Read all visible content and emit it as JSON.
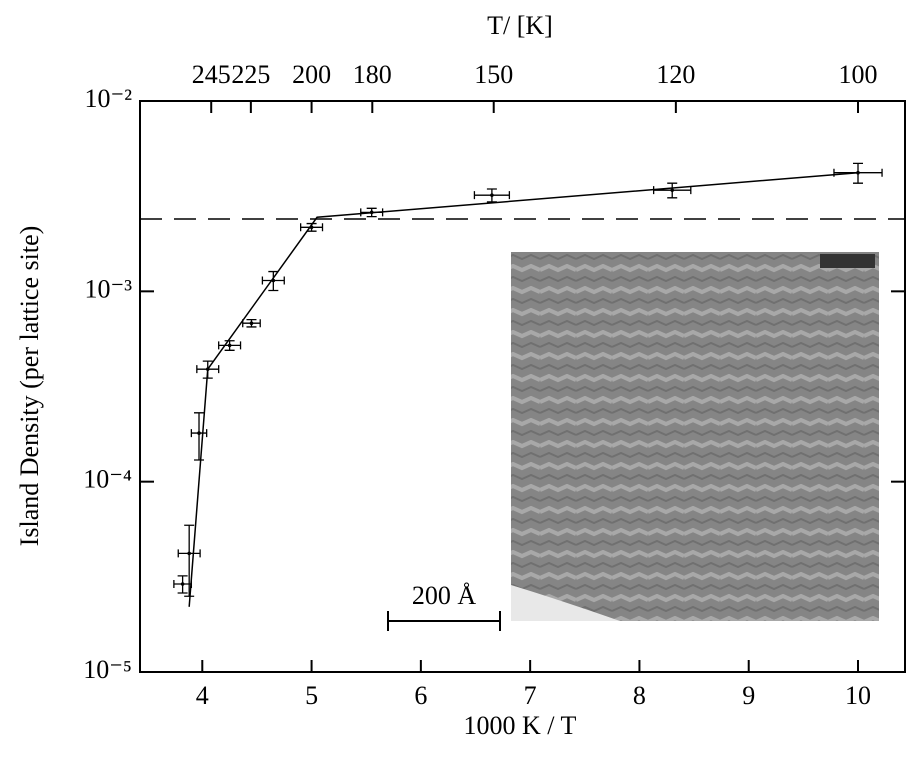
{
  "chart_data": {
    "type": "scatter",
    "x_label": "1000 K / T",
    "y_label": "Island Density  (per lattice site)",
    "top_label": "T/ [K]",
    "x": [
      3.82,
      3.88,
      3.97,
      4.05,
      4.25,
      4.45,
      4.65,
      5.0,
      5.55,
      6.65,
      8.3,
      10.0
    ],
    "values": [
      2.9e-05,
      4.2e-05,
      0.00018,
      0.00039,
      0.00052,
      0.00068,
      0.00114,
      0.00217,
      0.0026,
      0.0032,
      0.0034,
      0.0042
    ],
    "xerr": [
      0.08,
      0.1,
      0.07,
      0.1,
      0.1,
      0.08,
      0.1,
      0.1,
      0.1,
      0.16,
      0.17,
      0.22
    ],
    "yerr": [
      3e-06,
      1.7e-05,
      5e-05,
      4e-05,
      3e-05,
      3e-05,
      0.00013,
      0.0001,
      0.00013,
      0.00025,
      0.0003,
      0.0005
    ],
    "color": "#000000",
    "fit": {
      "x": [
        3.88,
        4.05,
        5.05,
        10.0
      ],
      "y": [
        2.2e-05,
        0.00039,
        0.00245,
        0.0042
      ]
    },
    "reference_line": 0.0024,
    "xlim": [
      3.43,
      10.43
    ],
    "ylim": [
      1e-05,
      0.01
    ],
    "log_y": true,
    "xticks": [
      4,
      5,
      6,
      7,
      8,
      9,
      10
    ],
    "yticks": [
      {
        "value": 1e-05,
        "label": "10⁻⁵"
      },
      {
        "value": 0.0001,
        "label": "10⁻⁴"
      },
      {
        "value": 0.001,
        "label": "10⁻³"
      },
      {
        "value": 0.01,
        "label": "10⁻²"
      }
    ],
    "top_ticks": [
      245,
      225,
      200,
      180,
      150,
      120,
      100
    ],
    "scale_bar_label": "200 Å"
  }
}
